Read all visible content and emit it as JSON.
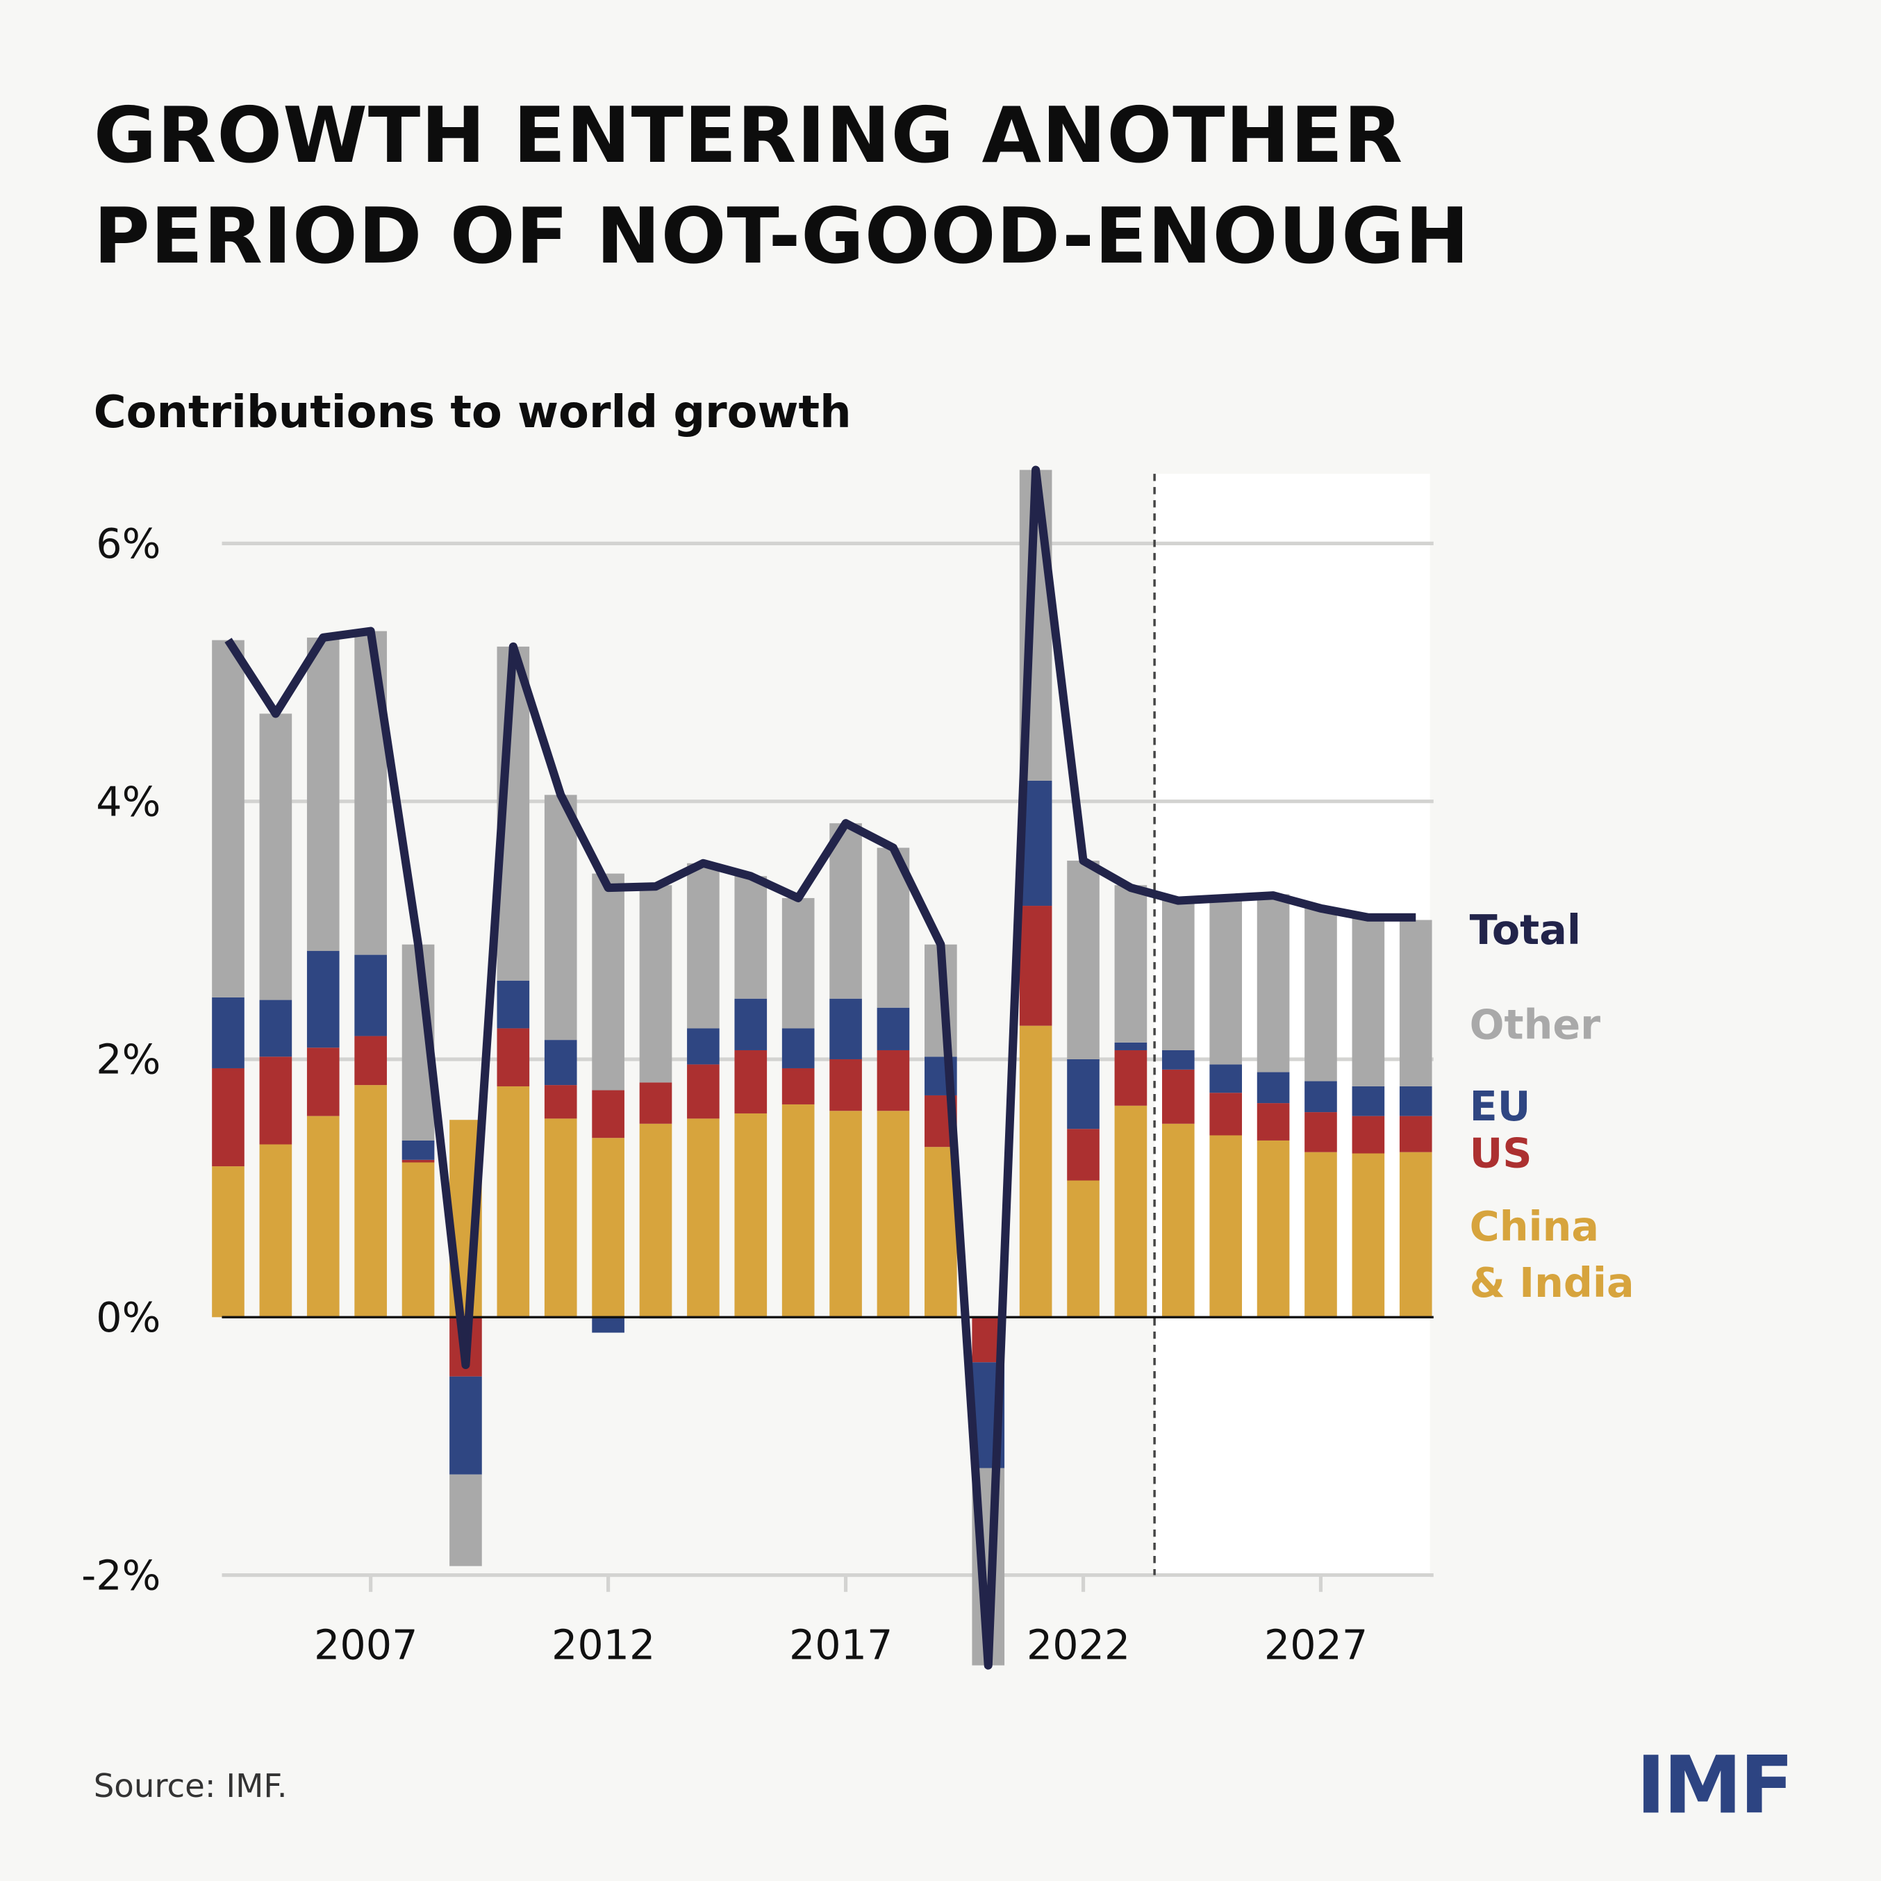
{
  "title_line1": "GROWTH ENTERING ANOTHER",
  "title_line2": "PERIOD OF NOT-GOOD-ENOUGH",
  "subtitle": "Contributions to world growth",
  "source": "Source: IMF.",
  "logo": "IMF",
  "chart_data": {
    "type": "bar",
    "stacked": true,
    "title": "Contributions to world growth",
    "x": [
      2004,
      2005,
      2006,
      2007,
      2008,
      2009,
      2010,
      2011,
      2012,
      2013,
      2014,
      2015,
      2016,
      2017,
      2018,
      2019,
      2020,
      2021,
      2022,
      2023,
      2024,
      2025,
      2026,
      2027,
      2028,
      2029
    ],
    "x_ticks": [
      "2007",
      "2012",
      "2017",
      "2022",
      "2027"
    ],
    "y_ticks": [
      "-2%",
      "0%",
      "2%",
      "4%",
      "6%"
    ],
    "ylim": [
      -2.7,
      6.6
    ],
    "grid": true,
    "forecast_from": 2024,
    "legend_placement": "right",
    "series": [
      {
        "name": "China\n& India",
        "label_lines": [
          "China",
          "& India"
        ],
        "color": "#d7a43d",
        "values": [
          1.17,
          1.34,
          1.56,
          1.8,
          1.2,
          1.53,
          1.79,
          1.54,
          1.39,
          1.5,
          1.54,
          1.58,
          1.65,
          1.6,
          1.6,
          1.32,
          0.0,
          2.26,
          1.06,
          1.64,
          1.5,
          1.41,
          1.37,
          1.28,
          1.27,
          1.28
        ]
      },
      {
        "name": "US",
        "color": "#ac3030",
        "values": [
          0.76,
          0.68,
          0.53,
          0.38,
          0.02,
          -0.46,
          0.45,
          0.26,
          0.37,
          0.32,
          0.42,
          0.49,
          0.28,
          0.4,
          0.47,
          0.4,
          -0.35,
          0.93,
          0.4,
          0.43,
          0.42,
          0.33,
          0.29,
          0.31,
          0.29,
          0.28
        ]
      },
      {
        "name": "EU",
        "color": "#2f4682",
        "values": [
          0.55,
          0.44,
          0.75,
          0.63,
          0.15,
          -0.76,
          0.37,
          0.35,
          -0.12,
          -0.01,
          0.28,
          0.4,
          0.31,
          0.47,
          0.33,
          0.3,
          -0.82,
          0.97,
          0.54,
          0.06,
          0.15,
          0.22,
          0.24,
          0.24,
          0.23,
          0.23
        ]
      },
      {
        "name": "Other",
        "color": "#a9a9a9",
        "values": [
          2.77,
          2.22,
          2.43,
          2.51,
          1.52,
          -0.71,
          2.59,
          1.9,
          1.68,
          1.53,
          1.28,
          0.95,
          1.01,
          1.36,
          1.24,
          0.87,
          -1.53,
          2.41,
          1.54,
          1.22,
          1.18,
          1.31,
          1.38,
          1.34,
          1.31,
          1.29
        ]
      }
    ],
    "line": {
      "name": "Total",
      "color": "#22244a",
      "values": [
        5.25,
        4.68,
        5.27,
        5.32,
        2.89,
        -0.37,
        5.2,
        4.05,
        3.33,
        3.34,
        3.52,
        3.42,
        3.25,
        3.83,
        3.64,
        2.89,
        -2.7,
        6.57,
        3.54,
        3.33,
        3.23,
        3.25,
        3.27,
        3.17,
        3.1,
        3.1
      ]
    }
  }
}
